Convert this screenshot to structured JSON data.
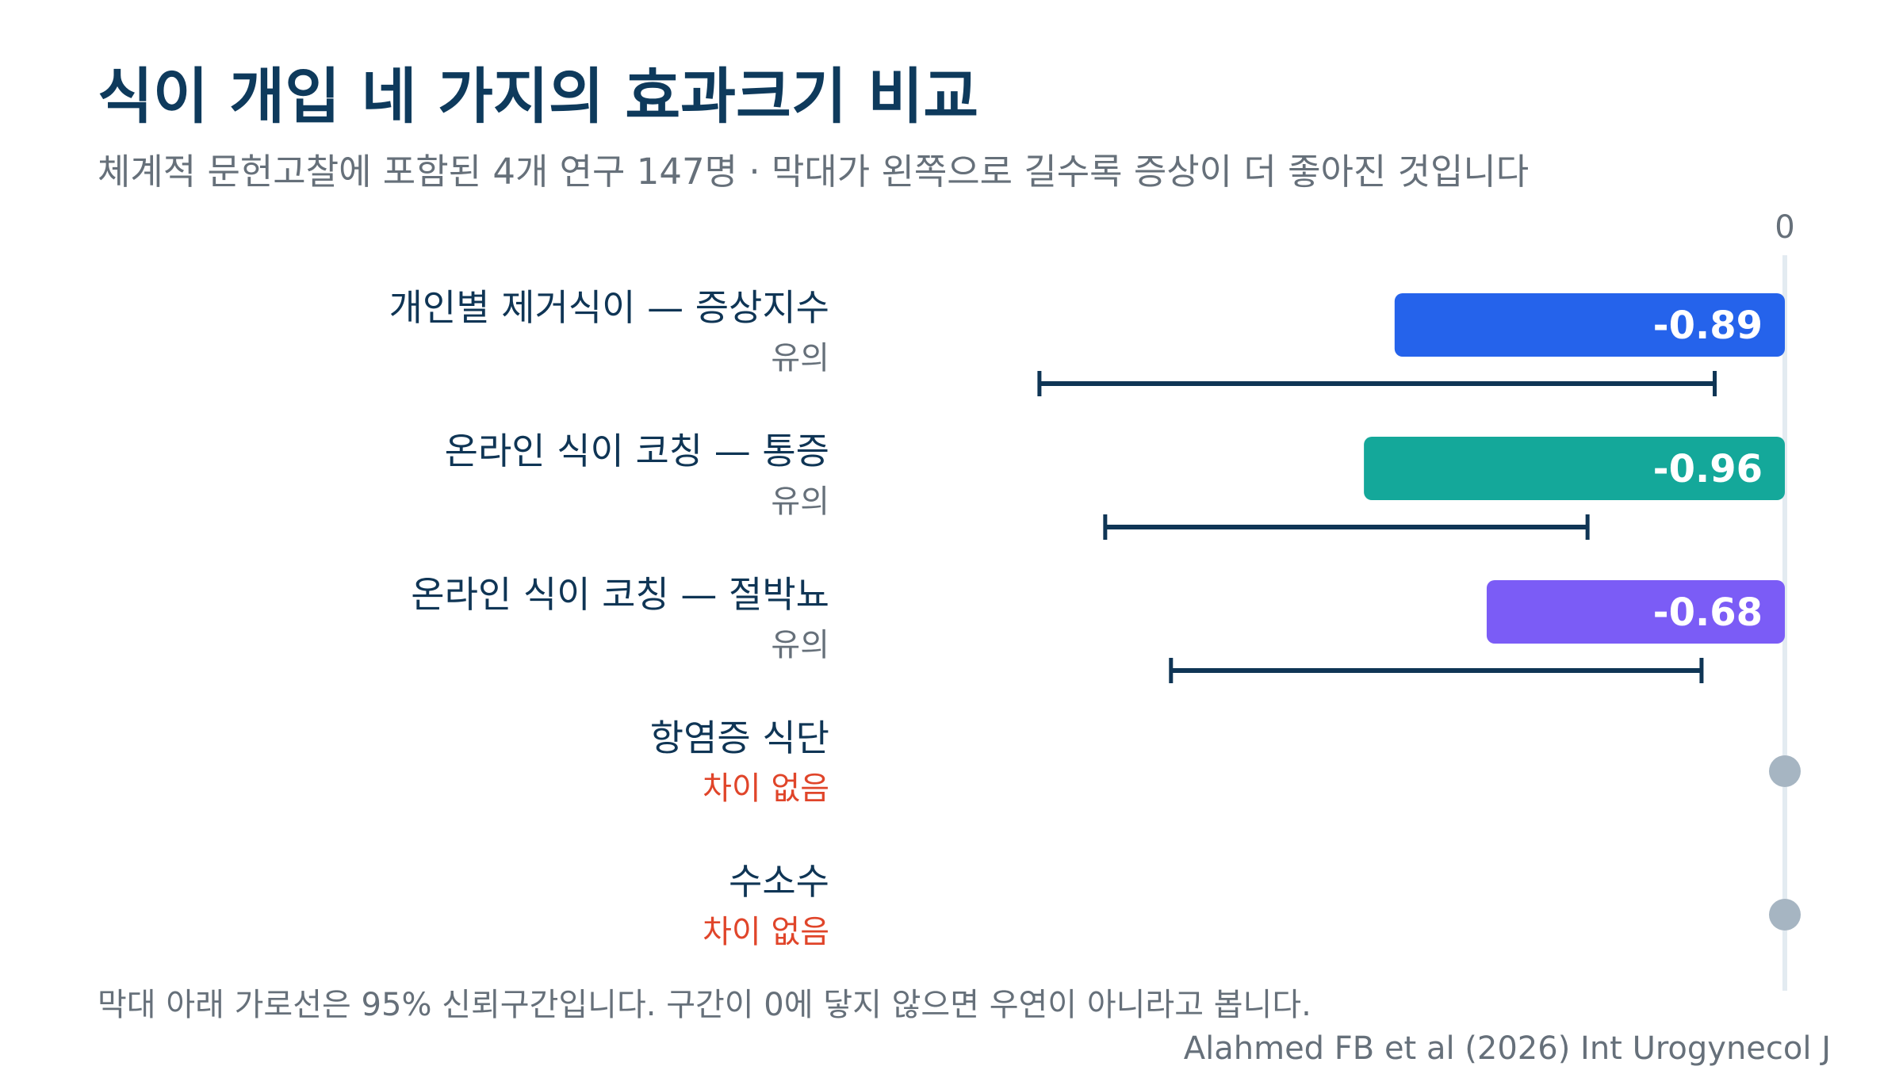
{
  "title": "식이 개입 네 가지의 효과크기 비교",
  "subtitle": "체계적 문헌고찰에 포함된 4개 연구 147명 · 막대가 왼쪽으로 길수록 증상이 더 좋아진 것입니다",
  "footnote": "막대 아래 가로선은 95% 신뢰구간입니다. 구간이 0에 닿지 않으면 우연이 아니라고 봅니다.",
  "source": "Alahmed FB et al (2026) Int Urogynecol J",
  "colors": {
    "significant_status": "#66707a",
    "not_significant_status": "#e0452a",
    "ci_line": "#0f3555",
    "null_dot": "#a6b5c2",
    "zero_line": "#e3ebf1"
  },
  "chart_data": {
    "type": "bar",
    "orientation": "horizontal",
    "zero_tick_label": "0",
    "xlim": [
      -1.8,
      0
    ],
    "rows": [
      {
        "label": "개인별 제거식이 — 증상지수",
        "status": "유의",
        "significant": true,
        "value": -0.89,
        "value_label": "-0.89",
        "ci": [
          -1.7,
          -0.16
        ],
        "color": "#2563eb"
      },
      {
        "label": "온라인 식이 코칭 — 통증",
        "status": "유의",
        "significant": true,
        "value": -0.96,
        "value_label": "-0.96",
        "ci": [
          -1.55,
          -0.45
        ],
        "color": "#14a89a"
      },
      {
        "label": "온라인 식이 코칭 — 절박뇨",
        "status": "유의",
        "significant": true,
        "value": -0.68,
        "value_label": "-0.68",
        "ci": [
          -1.4,
          -0.19
        ],
        "color": "#7b5cf6"
      },
      {
        "label": "항염증 식단",
        "status": "차이 없음",
        "significant": false,
        "value": 0
      },
      {
        "label": "수소수",
        "status": "차이 없음",
        "significant": false,
        "value": 0
      }
    ]
  }
}
